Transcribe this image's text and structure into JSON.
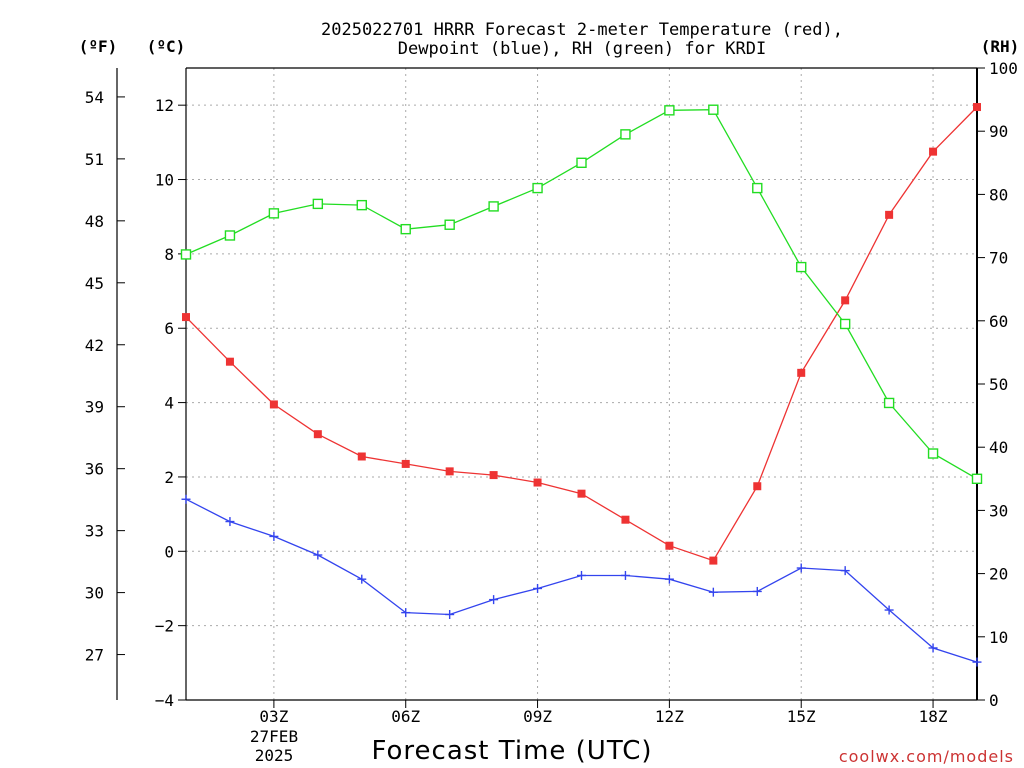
{
  "chart_data": {
    "type": "line",
    "title_line1": "2025022701 HRRR Forecast 2-meter Temperature (red),",
    "title_line2": "Dewpoint (blue), RH (green) for KRDI",
    "xlabel": "Forecast Time (UTC)",
    "unit_f": "(ºF)",
    "unit_c": "(ºC)",
    "unit_rh": "(RH)",
    "date_label_day": "27FEB",
    "date_label_year": "2025",
    "credit": "coolwx.com/models",
    "x_hours": [
      1,
      2,
      3,
      4,
      5,
      6,
      7,
      8,
      9,
      10,
      11,
      12,
      13,
      14,
      15,
      16,
      17,
      18,
      19
    ],
    "xlim": [
      1,
      19
    ],
    "x_ticks": [
      {
        "hour": 3,
        "label": "03Z"
      },
      {
        "hour": 6,
        "label": "06Z"
      },
      {
        "hour": 9,
        "label": "09Z"
      },
      {
        "hour": 12,
        "label": "12Z"
      },
      {
        "hour": 15,
        "label": "15Z"
      },
      {
        "hour": 18,
        "label": "18Z"
      }
    ],
    "ylim_c": [
      -4,
      13
    ],
    "yticks_c": [
      -4,
      -2,
      0,
      2,
      4,
      6,
      8,
      10,
      12
    ],
    "yticks_c_labels": [
      "−4",
      "−2",
      "0",
      "2",
      "4",
      "6",
      "8",
      "10",
      "12"
    ],
    "yticks_f": [
      27,
      30,
      33,
      36,
      39,
      42,
      45,
      48,
      51,
      54
    ],
    "ylim_rh": [
      0,
      100
    ],
    "yticks_rh": [
      0,
      10,
      20,
      30,
      40,
      50,
      60,
      70,
      80,
      90,
      100
    ],
    "grid": true,
    "series": [
      {
        "name": "Temperature",
        "color": "#ee3333",
        "marker": "filled-square",
        "axis": "c",
        "values": [
          6.3,
          5.1,
          3.95,
          3.15,
          2.55,
          2.35,
          2.15,
          2.05,
          1.85,
          1.55,
          0.85,
          0.15,
          -0.25,
          1.75,
          4.8,
          6.75,
          9.05,
          10.75,
          11.95
        ]
      },
      {
        "name": "Dewpoint",
        "color": "#3344ee",
        "marker": "plus",
        "axis": "c",
        "values": [
          1.4,
          0.8,
          0.4,
          -0.1,
          -0.75,
          -1.65,
          -1.7,
          -1.3,
          -1.0,
          -0.65,
          -0.65,
          -0.75,
          -1.1,
          -1.08,
          -0.45,
          -0.52,
          -1.58,
          -2.6,
          -2.98
        ]
      },
      {
        "name": "RH",
        "color": "#22dd22",
        "marker": "open-square",
        "axis": "rh",
        "values": [
          70.5,
          73.5,
          77,
          78.5,
          78.3,
          74.5,
          75.2,
          78.1,
          81,
          85,
          89.5,
          93.3,
          93.4,
          81,
          68.5,
          59.5,
          47,
          39,
          35
        ]
      }
    ]
  }
}
